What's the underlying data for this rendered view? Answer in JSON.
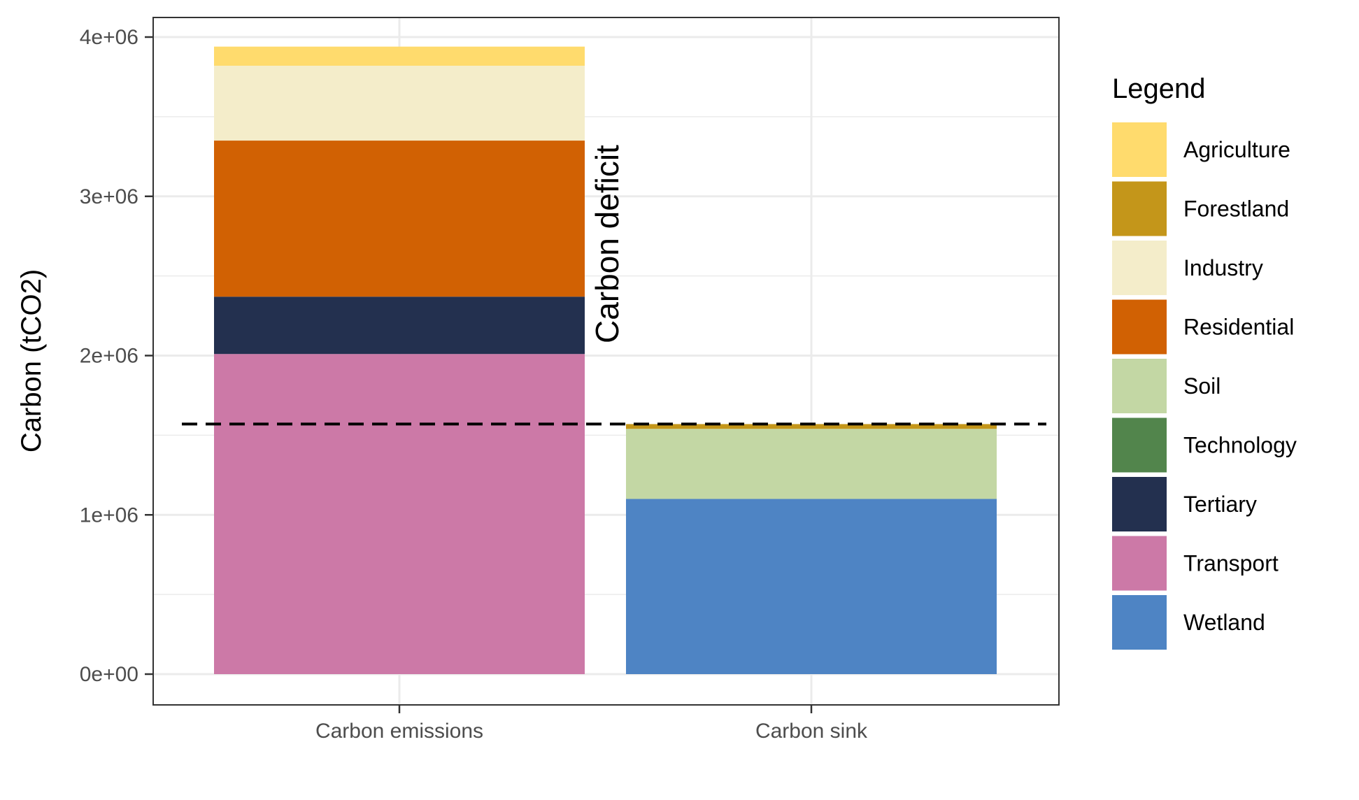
{
  "chart_data": {
    "type": "bar",
    "stacked": true,
    "categories": [
      "Carbon emissions",
      "Carbon sink"
    ],
    "ylabel": "Carbon (tCO2)",
    "xlabel": "",
    "ylim": [
      -200000,
      4130000
    ],
    "yticks": [
      0,
      1000000,
      2000000,
      3000000,
      4000000
    ],
    "ytick_labels": [
      "0e+00",
      "1e+06",
      "2e+06",
      "3e+06",
      "4e+06"
    ],
    "grid": true,
    "legend": {
      "title": "Legend",
      "position": "right"
    },
    "series": [
      {
        "name": "Agriculture",
        "color": "#FFDB6D",
        "values": [
          120000,
          0
        ]
      },
      {
        "name": "Forestland",
        "color": "#C4961A",
        "values": [
          0,
          30000
        ]
      },
      {
        "name": "Industry",
        "color": "#F4EDCA",
        "values": [
          470000,
          0
        ]
      },
      {
        "name": "Residential",
        "color": "#D16103",
        "values": [
          980000,
          0
        ]
      },
      {
        "name": "Soil",
        "color": "#C3D7A4",
        "values": [
          0,
          440000
        ]
      },
      {
        "name": "Technology",
        "color": "#52854C",
        "values": [
          0,
          0
        ]
      },
      {
        "name": "Tertiary",
        "color": "#23304F",
        "values": [
          360000,
          0
        ]
      },
      {
        "name": "Transport",
        "color": "#CC79A7",
        "values": [
          2010000,
          0
        ]
      },
      {
        "name": "Wetland",
        "color": "#4E84C4",
        "values": [
          0,
          1100000
        ]
      }
    ],
    "stack_order_bottom_to_top": [
      "Transport",
      "Tertiary",
      "Residential",
      "Industry",
      "Agriculture",
      "Wetland",
      "Soil",
      "Technology",
      "Forestland"
    ],
    "reference_line": {
      "y": 1570000,
      "style": "dashed",
      "color": "#000000"
    },
    "annotations": [
      {
        "text": "Carbon deficit",
        "x": "Carbon emissions",
        "y": 2700000,
        "rotation": -90
      }
    ]
  }
}
